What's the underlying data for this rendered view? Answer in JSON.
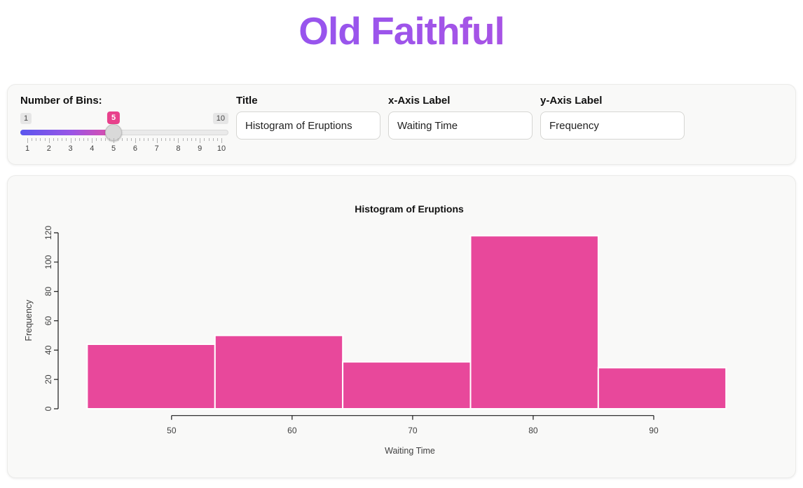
{
  "header": {
    "title": "Old Faithful"
  },
  "controls": {
    "bins_slider": {
      "label": "Number of Bins:",
      "min_label": "1",
      "max_label": "10",
      "value_label": "5",
      "min": 1,
      "max": 10,
      "value": 5,
      "tick_labels": [
        "1",
        "2",
        "3",
        "4",
        "5",
        "6",
        "7",
        "8",
        "9",
        "10"
      ],
      "minor_ticks_per_interval": 4
    },
    "title_field": {
      "label": "Title",
      "value": "Histogram of Eruptions"
    },
    "xaxis_field": {
      "label": "x-Axis Label",
      "value": "Waiting Time"
    },
    "yaxis_field": {
      "label": "y-Axis Label",
      "value": "Frequency"
    }
  },
  "chart_data": {
    "type": "bar",
    "title": "Histogram of Eruptions",
    "xlabel": "Waiting Time",
    "ylabel": "Frequency",
    "bin_breaks": [
      43,
      53.6,
      64.2,
      74.8,
      85.4,
      96
    ],
    "values": [
      44,
      50,
      32,
      118,
      28
    ],
    "x_tick_values": [
      50,
      60,
      70,
      80,
      90
    ],
    "x_tick_labels": [
      "50",
      "60",
      "70",
      "80",
      "90"
    ],
    "y_tick_values": [
      0,
      20,
      40,
      60,
      80,
      100,
      120
    ],
    "y_tick_labels": [
      "0",
      "20",
      "40",
      "60",
      "80",
      "100",
      "120"
    ],
    "xlim": [
      43,
      96
    ],
    "ylim": [
      0,
      120
    ],
    "grid": false,
    "legend": "none",
    "bar_color": "#e8489b",
    "bar_border_color": "#ffffff"
  },
  "colors": {
    "title_gradient_start": "#8a52f5",
    "title_gradient_end": "#c44fd6",
    "slider_gradient_start": "#5b57ee",
    "slider_gradient_end": "#e14da6",
    "slider_value_badge": "#e8418c",
    "histogram_bar": "#e8489b",
    "card_background": "#f9f9f8"
  }
}
